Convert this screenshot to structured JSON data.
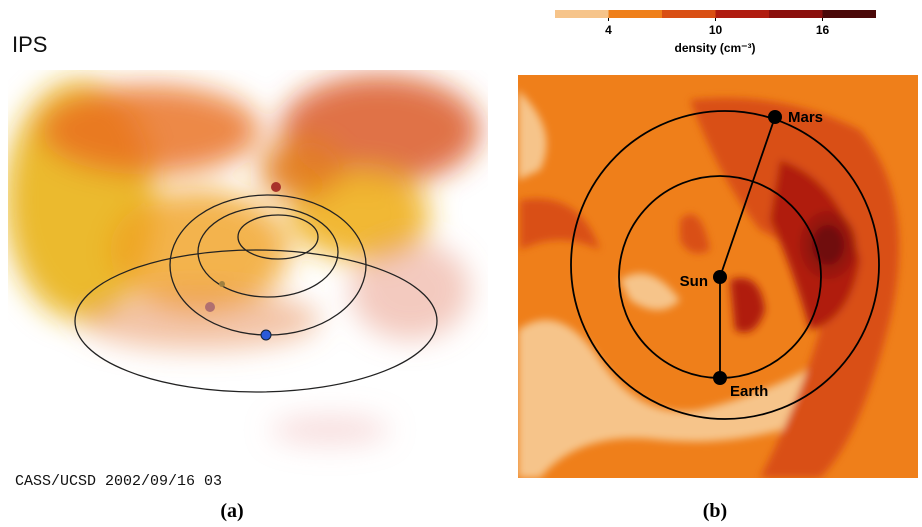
{
  "panel_a": {
    "title": "IPS",
    "credit": "CASS/UCSD 2002/09/16 03",
    "caption": "(a)"
  },
  "panel_b": {
    "caption": "(b)",
    "colorbar": {
      "label": "density (cm⁻³)",
      "clim": [
        1,
        19
      ],
      "levels": [
        1,
        4,
        7,
        10,
        13,
        16,
        19
      ],
      "colors": [
        "#f6c48a",
        "#ef7f1a",
        "#d94f14",
        "#b01c10",
        "#8a0f0c",
        "#4a0808"
      ],
      "ticks": [
        4,
        10,
        16
      ]
    },
    "planets": [
      "Mars",
      "Sun",
      "Earth"
    ]
  }
}
